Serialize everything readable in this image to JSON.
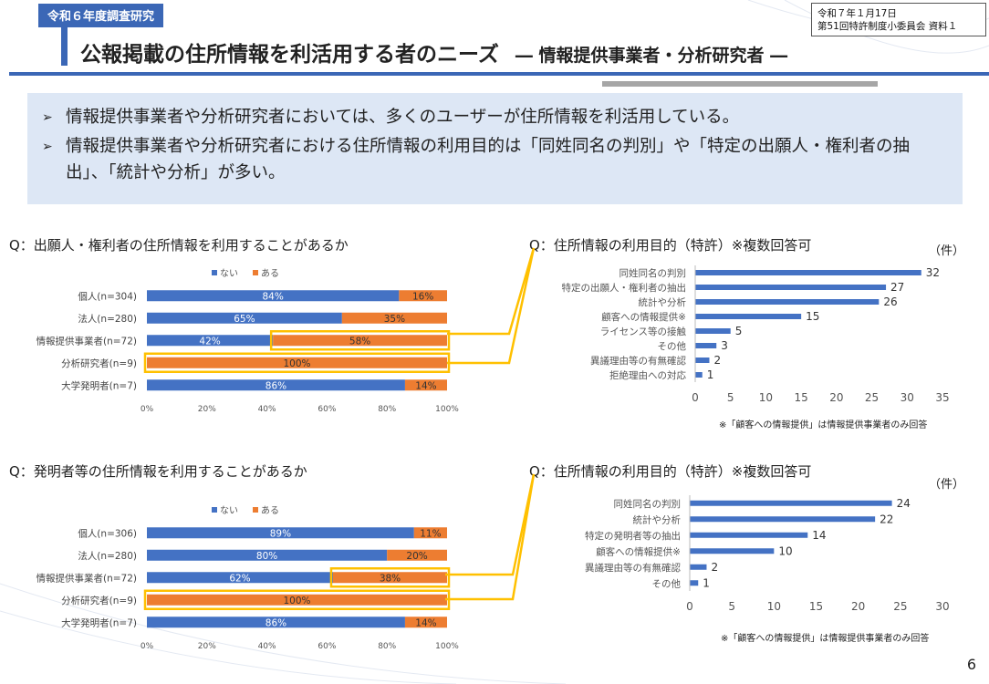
{
  "header": {
    "tag": "令和６年度調査研究",
    "meta_line1": "令和７年１月17日",
    "meta_line2": "第51回特許制度小委員会 資料１",
    "title": "公報掲載の住所情報を利活用する者のニーズ",
    "subtitle": "― 情報提供事業者・分析研究者 ―"
  },
  "summary": {
    "bullets": [
      "情報提供事業者や分析研究者においては、多くのユーザーが住所情報を利活用している。",
      "情報提供事業者や分析研究者における住所情報の利用目的は「同姓同名の判別」や「特定の出願人・権利者の抽出」、「統計や分析」が多い。"
    ]
  },
  "colors": {
    "blue": "#4472c4",
    "orange": "#ed7d31",
    "highlight": "#ffc000",
    "accent": "#3b67b6"
  },
  "questions": {
    "q1": "Q：出願人・権利者の住所情報を利用することがあるか",
    "q2": "Q：住所情報の利用目的（特許）※複数回答可",
    "q3": "Q：発明者等の住所情報を利用することがあるか",
    "q4": "Q：住所情報の利用目的（特許）※複数回答可"
  },
  "unit_label": "（件）",
  "note": "※「顧客への情報提供」は情報提供事業者のみ回答",
  "page_number": "6",
  "chart_data": [
    {
      "type": "bar",
      "orientation": "horizontal-stacked-100",
      "legend": [
        "ない",
        "ある"
      ],
      "legend_position": "top",
      "categories": [
        "個人(n=304)",
        "法人(n=280)",
        "情報提供事業者(n=72)",
        "分析研究者(n=9)",
        "大学発明者(n=7)"
      ],
      "series": [
        {
          "name": "ない",
          "values": [
            84,
            65,
            42,
            0,
            86
          ]
        },
        {
          "name": "ある",
          "values": [
            16,
            35,
            58,
            100,
            14
          ]
        }
      ],
      "xlim": [
        0,
        100
      ],
      "xticks": [
        "0%",
        "20%",
        "40%",
        "60%",
        "80%",
        "100%"
      ]
    },
    {
      "type": "bar",
      "orientation": "horizontal",
      "categories": [
        "同姓同名の判別",
        "特定の出願人・権利者の抽出",
        "統計や分析",
        "顧客への情報提供※",
        "ライセンス等の接触",
        "その他",
        "異議理由等の有無確認",
        "拒絶理由への対応"
      ],
      "values": [
        32,
        27,
        26,
        15,
        5,
        3,
        2,
        1
      ],
      "xlim": [
        0,
        35
      ],
      "xticks": [
        "0",
        "5",
        "10",
        "15",
        "20",
        "25",
        "30",
        "35"
      ]
    },
    {
      "type": "bar",
      "orientation": "horizontal-stacked-100",
      "legend": [
        "ない",
        "ある"
      ],
      "legend_position": "top",
      "categories": [
        "個人(n=306)",
        "法人(n=280)",
        "情報提供事業者(n=72)",
        "分析研究者(n=9)",
        "大学発明者(n=7)"
      ],
      "series": [
        {
          "name": "ない",
          "values": [
            89,
            80,
            62,
            0,
            86
          ]
        },
        {
          "name": "ある",
          "values": [
            11,
            20,
            38,
            100,
            14
          ]
        }
      ],
      "xlim": [
        0,
        100
      ],
      "xticks": [
        "0%",
        "20%",
        "40%",
        "60%",
        "80%",
        "100%"
      ]
    },
    {
      "type": "bar",
      "orientation": "horizontal",
      "categories": [
        "同姓同名の判別",
        "統計や分析",
        "特定の発明者等の抽出",
        "顧客への情報提供※",
        "異議理由等の有無確認",
        "その他"
      ],
      "values": [
        24,
        22,
        14,
        10,
        2,
        1
      ],
      "xlim": [
        0,
        30
      ],
      "xticks": [
        "0",
        "5",
        "10",
        "15",
        "20",
        "25",
        "30"
      ]
    }
  ]
}
